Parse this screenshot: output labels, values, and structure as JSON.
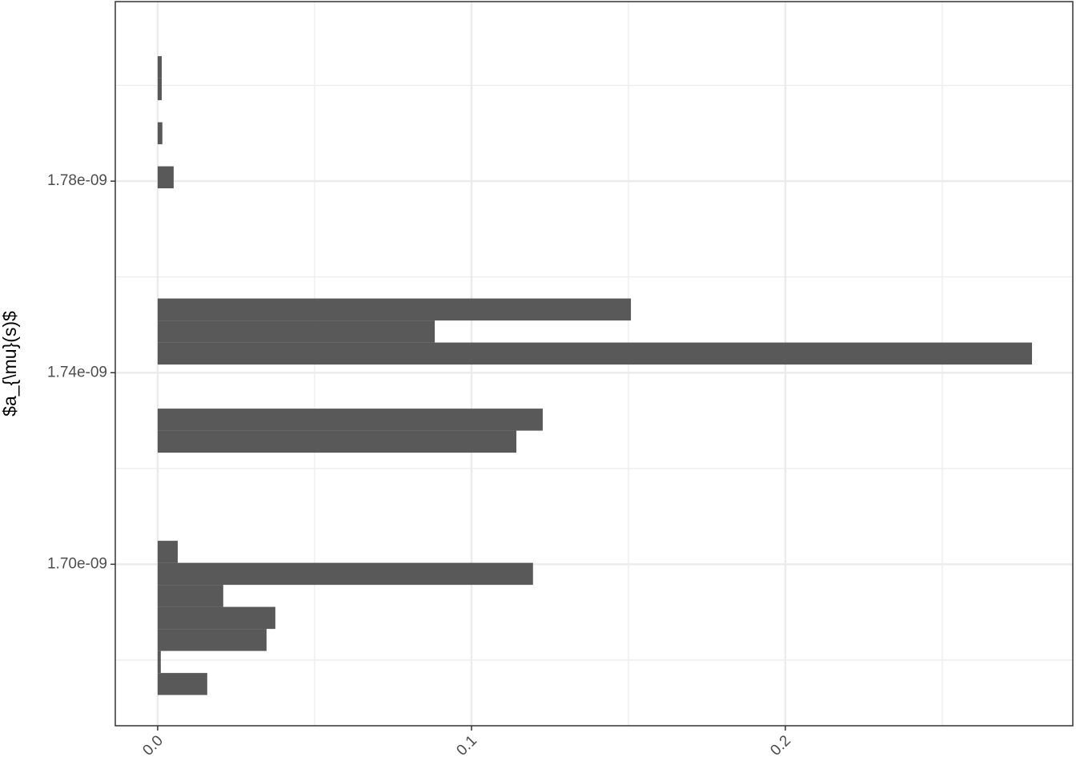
{
  "chart_data": {
    "type": "histogram",
    "orientation": "horizontal",
    "y_label": "$a_{\\mu}(s)$",
    "bins": [
      1.6727e-09,
      1.6773e-09,
      1.6819e-09,
      1.6865e-09,
      1.6911e-09,
      1.6957e-09,
      1.7003e-09,
      1.7049e-09,
      1.7095e-09,
      1.7141e-09,
      1.7187e-09,
      1.7233e-09,
      1.7279e-09,
      1.7325e-09,
      1.7371e-09,
      1.7417e-09,
      1.7463e-09,
      1.7509e-09,
      1.7555e-09,
      1.7601e-09,
      1.7647e-09,
      1.7693e-09,
      1.7739e-09,
      1.7785e-09,
      1.7831e-09,
      1.7877e-09,
      1.7923e-09,
      1.7969e-09,
      1.8015e-09,
      1.8061e-09
    ],
    "values": [
      0.0158,
      0.001,
      0.0347,
      0.0375,
      0.0209,
      0.1196,
      0.0064,
      0,
      0,
      0,
      0,
      0.1143,
      0.1227,
      0,
      0,
      0.2786,
      0.0883,
      0.1508,
      0,
      0,
      0,
      0,
      0,
      0.0051,
      0,
      0.0015,
      0,
      0.0013,
      0.0013
    ],
    "color": "#595959",
    "xlim": [
      -0.0135,
      0.2916
    ],
    "xticks": [
      {
        "value": 0,
        "label": "0.0"
      },
      0.1,
      0.2
    ],
    "xminor": [
      0.05,
      0.15,
      0.25
    ],
    "ylim": [
      1.66628e-09,
      1.81749e-09
    ],
    "yticks": [
      {
        "value": 1.7e-09,
        "label": "1.70e-09"
      },
      {
        "value": 1.74e-09,
        "label": "1.74e-09"
      },
      {
        "value": 1.78e-09,
        "label": "1.78e-09"
      }
    ],
    "yminor": [
      1.68e-09,
      1.72e-09,
      1.76e-09,
      1.8e-09
    ],
    "grid": true
  }
}
